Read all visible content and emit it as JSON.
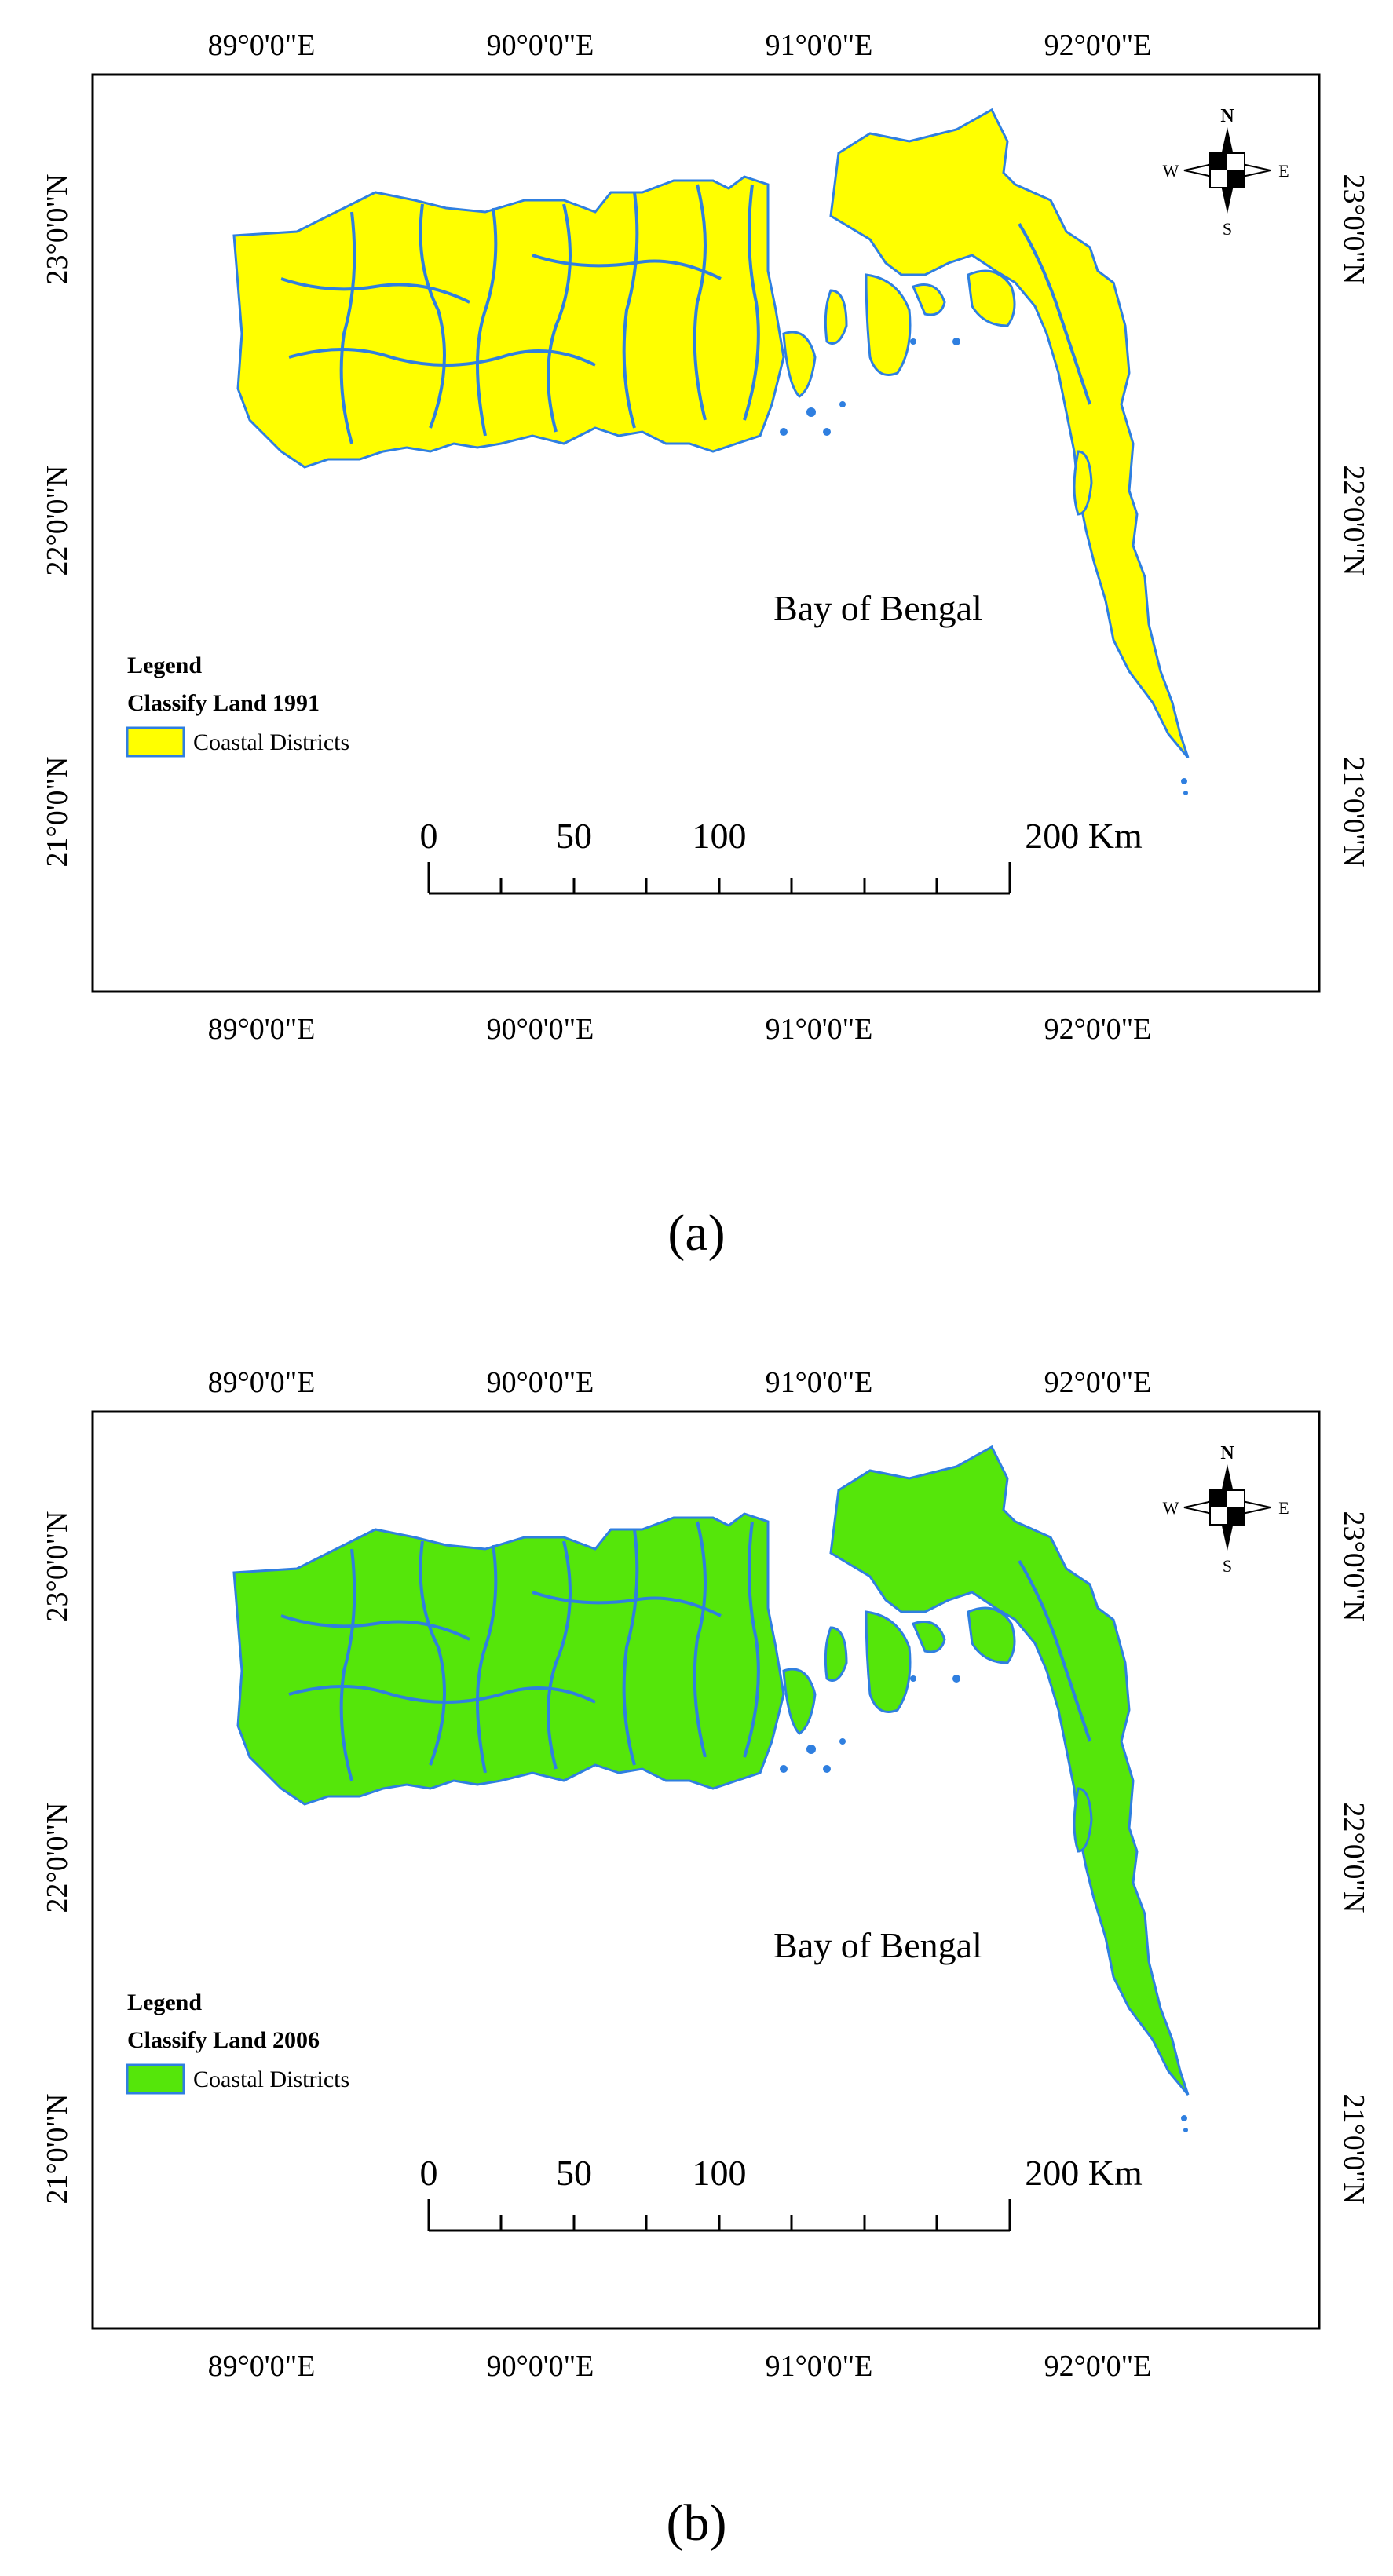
{
  "panels": [
    {
      "id": "a",
      "caption": "(a)",
      "land_color": "#ffff00",
      "outline_color": "#2f7fe0",
      "coastline": "boundary",
      "lon_labels": [
        "89°0'0\"E",
        "90°0'0\"E",
        "91°0'0\"E",
        "92°0'0\"E"
      ],
      "lat_labels": [
        "23°0'0\"N",
        "22°0'0\"N",
        "21°0'0\"N"
      ],
      "sea_label": "Bay of Bengal",
      "legend": {
        "title": "Legend",
        "subtitle": "Classify Land 1991",
        "item": "Coastal Districts"
      },
      "scale_bar": {
        "ticks": [
          "0",
          "50",
          "100"
        ],
        "end_label": "200 Km"
      },
      "compass": {
        "n": "N",
        "s": "S",
        "e": "E",
        "w": "W"
      }
    },
    {
      "id": "b",
      "caption": "(b)",
      "land_color": "#55e60a",
      "outline_color": "#2f7fe0",
      "coastline": "boundary",
      "lon_labels": [
        "89°0'0\"E",
        "90°0'0\"E",
        "91°0'0\"E",
        "92°0'0\"E"
      ],
      "lat_labels": [
        "23°0'0\"N",
        "22°0'0\"N",
        "21°0'0\"N"
      ],
      "sea_label": "Bay of Bengal",
      "legend": {
        "title": "Legend",
        "subtitle": "Classify Land 2006",
        "item": "Coastal Districts"
      },
      "scale_bar": {
        "ticks": [
          "0",
          "50",
          "100"
        ],
        "end_label": "200 Km"
      },
      "compass": {
        "n": "N",
        "s": "S",
        "e": "E",
        "w": "W"
      }
    }
  ]
}
